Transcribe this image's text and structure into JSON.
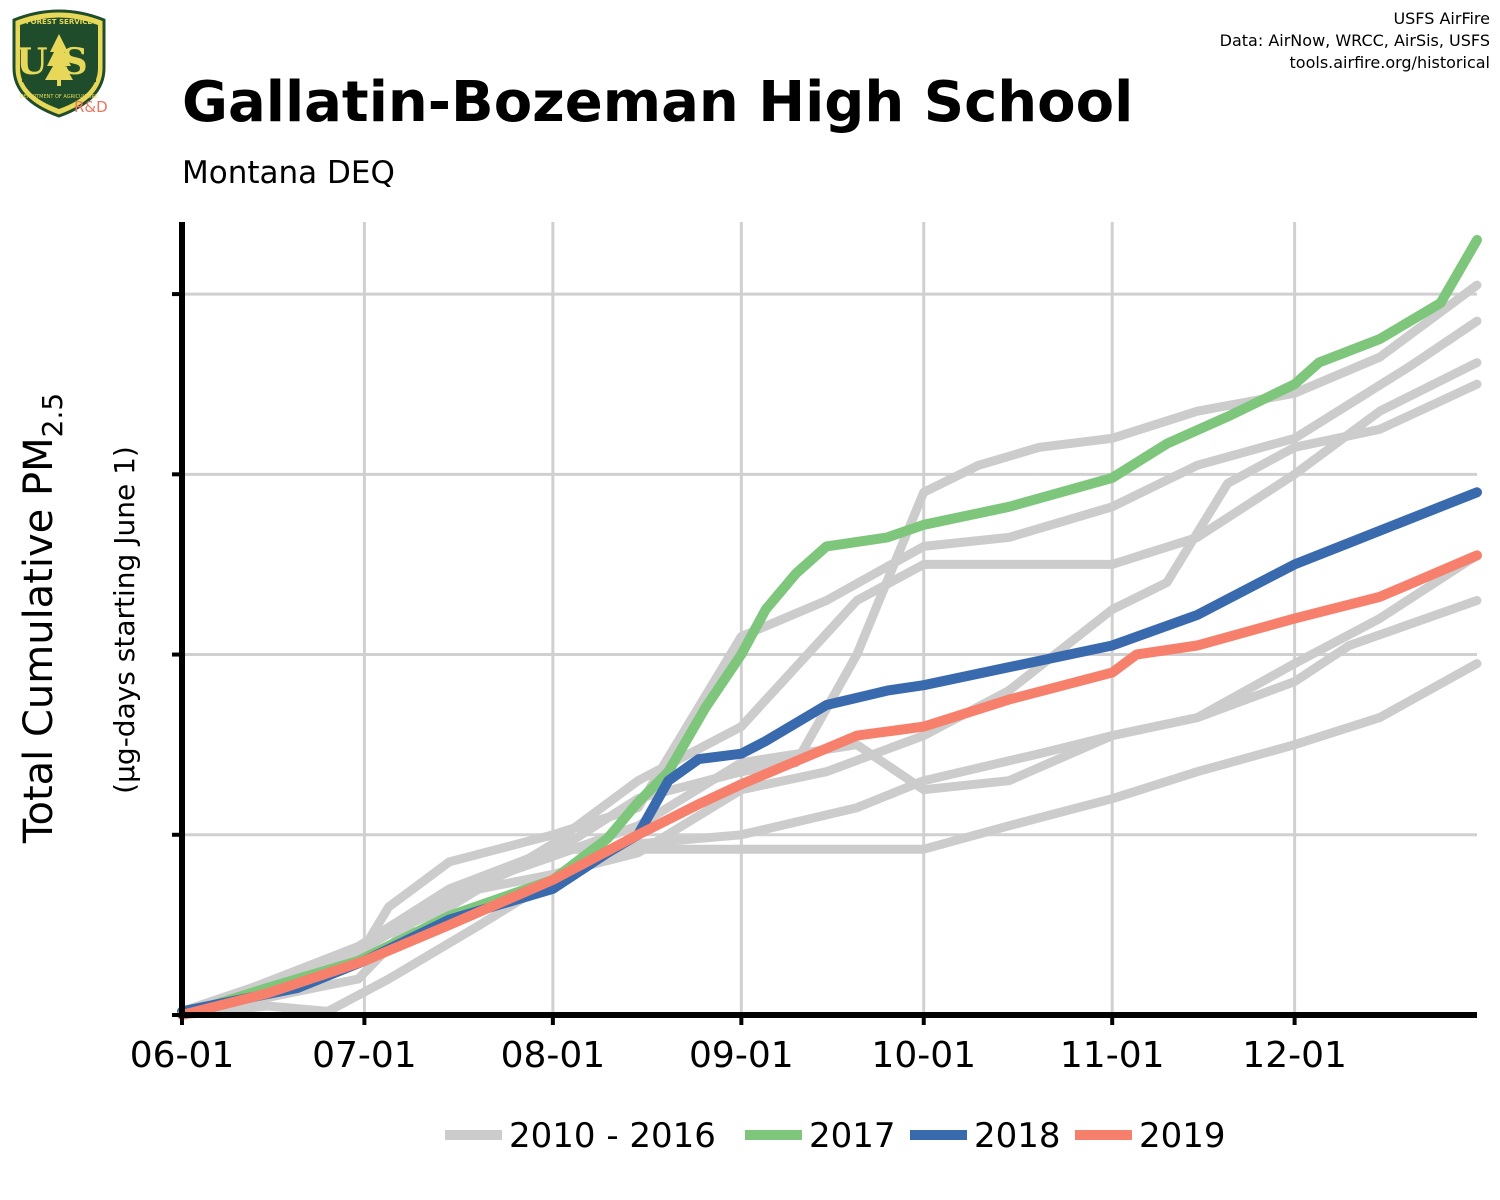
{
  "header": {
    "title": "Gallatin-Bozeman High School",
    "subtitle": "Montana DEQ",
    "credits": [
      "USFS AirFire",
      "Data: AirNow, WRCC, AirSis, USFS",
      "tools.airfire.org/historical"
    ],
    "logo": {
      "icon": "usfs-shield-icon",
      "text_top": "FOREST SERVICE",
      "letters": "US",
      "text_bottom": "DEPARTMENT OF AGRICULTURE",
      "tag": "R&D"
    }
  },
  "colors": {
    "background": "#ffffff",
    "grid": "#d0d0d0",
    "axis": "#000000",
    "logo_green": "#1f4d2b",
    "logo_gold": "#e8d85a"
  },
  "chart_data": {
    "type": "line",
    "title": "Gallatin-Bozeman High School",
    "subtitle": "Montana DEQ",
    "ylabel": "Total Cumulative PM2.5",
    "ylabel_parts": {
      "main": "Total Cumulative PM",
      "subscript": "2.5"
    },
    "ylabel_sub": "(µg-days starting June 1)",
    "xlabel": "",
    "x_type": "date",
    "xlim": [
      "06-01",
      "12-31"
    ],
    "x_ticks": [
      "06-01",
      "07-01",
      "08-01",
      "09-01",
      "10-01",
      "11-01",
      "12-01"
    ],
    "y_tick_count": 4,
    "y_tick_labels_shown": false,
    "grid": true,
    "legend_position": "bottom",
    "legend": [
      {
        "label": "2010 - 2016",
        "color": "#cccccc"
      },
      {
        "label": "2017",
        "color": "#7dc67b"
      },
      {
        "label": "2018",
        "color": "#3a6aae"
      },
      {
        "label": "2019",
        "color": "#f7806d"
      }
    ],
    "series": [
      {
        "group": "2010 - 2016",
        "color": "#cccccc",
        "points": [
          [
            "06-01",
            0.0
          ],
          [
            "06-30",
            0.32
          ],
          [
            "07-05",
            0.6
          ],
          [
            "07-15",
            0.85
          ],
          [
            "08-01",
            1.0
          ],
          [
            "08-15",
            1.15
          ],
          [
            "09-01",
            2.1
          ],
          [
            "09-15",
            2.3
          ],
          [
            "10-01",
            2.6
          ],
          [
            "10-15",
            2.65
          ],
          [
            "11-01",
            2.82
          ],
          [
            "11-15",
            3.05
          ],
          [
            "12-01",
            3.2
          ],
          [
            "12-20",
            3.6
          ],
          [
            "12-31",
            3.85
          ]
        ]
      },
      {
        "group": "2010 - 2016",
        "color": "#cccccc",
        "points": [
          [
            "06-01",
            0.02
          ],
          [
            "06-30",
            0.35
          ],
          [
            "07-15",
            0.65
          ],
          [
            "08-01",
            0.9
          ],
          [
            "08-15",
            1.2
          ],
          [
            "09-01",
            1.35
          ],
          [
            "09-10",
            1.4
          ],
          [
            "09-20",
            2.0
          ],
          [
            "10-01",
            2.9
          ],
          [
            "10-10",
            3.05
          ],
          [
            "10-20",
            3.15
          ],
          [
            "11-01",
            3.2
          ],
          [
            "11-15",
            3.35
          ],
          [
            "12-01",
            3.45
          ],
          [
            "12-15",
            3.65
          ],
          [
            "12-31",
            4.05
          ]
        ]
      },
      {
        "group": "2010 - 2016",
        "color": "#cccccc",
        "points": [
          [
            "06-01",
            0.0
          ],
          [
            "06-20",
            0.18
          ],
          [
            "07-01",
            0.4
          ],
          [
            "07-15",
            0.6
          ],
          [
            "08-01",
            0.95
          ],
          [
            "08-15",
            1.3
          ],
          [
            "09-01",
            1.6
          ],
          [
            "09-20",
            2.3
          ],
          [
            "10-01",
            2.5
          ],
          [
            "11-01",
            2.5
          ],
          [
            "11-15",
            2.65
          ],
          [
            "12-01",
            3.0
          ],
          [
            "12-15",
            3.35
          ],
          [
            "12-31",
            3.62
          ]
        ]
      },
      {
        "group": "2010 - 2016",
        "color": "#cccccc",
        "points": [
          [
            "06-01",
            0.0
          ],
          [
            "06-30",
            0.2
          ],
          [
            "07-10",
            0.55
          ],
          [
            "07-20",
            0.7
          ],
          [
            "08-01",
            0.78
          ],
          [
            "08-15",
            0.9
          ],
          [
            "09-01",
            1.25
          ],
          [
            "09-15",
            1.35
          ],
          [
            "10-01",
            1.55
          ],
          [
            "10-15",
            1.8
          ],
          [
            "11-01",
            2.25
          ],
          [
            "11-10",
            2.4
          ],
          [
            "11-20",
            2.95
          ],
          [
            "12-01",
            3.15
          ],
          [
            "12-15",
            3.25
          ],
          [
            "12-31",
            3.5
          ]
        ]
      },
      {
        "group": "2010 - 2016",
        "color": "#cccccc",
        "points": [
          [
            "06-01",
            0.0
          ],
          [
            "06-15",
            0.05
          ],
          [
            "06-25",
            0.02
          ],
          [
            "07-05",
            0.2
          ],
          [
            "07-20",
            0.5
          ],
          [
            "08-01",
            0.75
          ],
          [
            "08-15",
            0.95
          ],
          [
            "09-01",
            1.0
          ],
          [
            "09-20",
            1.15
          ],
          [
            "10-01",
            1.3
          ],
          [
            "10-20",
            1.45
          ],
          [
            "11-01",
            1.55
          ],
          [
            "11-15",
            1.65
          ],
          [
            "12-01",
            1.85
          ],
          [
            "12-10",
            2.05
          ],
          [
            "12-31",
            2.3
          ]
        ]
      },
      {
        "group": "2010 - 2016",
        "color": "#cccccc",
        "points": [
          [
            "06-01",
            0.0
          ],
          [
            "06-30",
            0.38
          ],
          [
            "07-15",
            0.7
          ],
          [
            "08-01",
            0.92
          ],
          [
            "08-10",
            0.92
          ],
          [
            "09-01",
            0.92
          ],
          [
            "10-01",
            0.92
          ],
          [
            "10-15",
            1.05
          ],
          [
            "11-01",
            1.2
          ],
          [
            "11-15",
            1.35
          ],
          [
            "12-01",
            1.5
          ],
          [
            "12-15",
            1.65
          ],
          [
            "12-31",
            1.95
          ]
        ]
      },
      {
        "group": "2010 - 2016",
        "color": "#cccccc",
        "points": [
          [
            "06-01",
            0.0
          ],
          [
            "06-30",
            0.35
          ],
          [
            "07-15",
            0.68
          ],
          [
            "08-01",
            0.88
          ],
          [
            "08-15",
            1.05
          ],
          [
            "09-01",
            1.4
          ],
          [
            "09-20",
            1.5
          ],
          [
            "10-01",
            1.25
          ],
          [
            "10-15",
            1.3
          ],
          [
            "11-01",
            1.55
          ],
          [
            "11-15",
            1.65
          ],
          [
            "12-01",
            1.95
          ],
          [
            "12-15",
            2.2
          ],
          [
            "12-31",
            2.55
          ]
        ]
      },
      {
        "name": "2017",
        "color": "#7dc67b",
        "points": [
          [
            "06-01",
            0.0
          ],
          [
            "06-15",
            0.15
          ],
          [
            "06-30",
            0.3
          ],
          [
            "07-15",
            0.55
          ],
          [
            "08-01",
            0.75
          ],
          [
            "08-10",
            0.98
          ],
          [
            "08-15",
            1.18
          ],
          [
            "08-20",
            1.35
          ],
          [
            "08-26",
            1.7
          ],
          [
            "09-01",
            2.0
          ],
          [
            "09-05",
            2.25
          ],
          [
            "09-10",
            2.45
          ],
          [
            "09-15",
            2.6
          ],
          [
            "09-25",
            2.65
          ],
          [
            "10-01",
            2.72
          ],
          [
            "10-15",
            2.82
          ],
          [
            "11-01",
            2.98
          ],
          [
            "11-10",
            3.17
          ],
          [
            "11-20",
            3.32
          ],
          [
            "12-01",
            3.5
          ],
          [
            "12-05",
            3.62
          ],
          [
            "12-15",
            3.75
          ],
          [
            "12-25",
            3.95
          ],
          [
            "12-31",
            4.3
          ]
        ]
      },
      {
        "name": "2018",
        "color": "#3a6aae",
        "points": [
          [
            "06-01",
            0.02
          ],
          [
            "06-20",
            0.15
          ],
          [
            "07-01",
            0.3
          ],
          [
            "07-15",
            0.53
          ],
          [
            "08-01",
            0.7
          ],
          [
            "08-10",
            0.9
          ],
          [
            "08-15",
            1.0
          ],
          [
            "08-20",
            1.3
          ],
          [
            "08-25",
            1.42
          ],
          [
            "09-01",
            1.45
          ],
          [
            "09-05",
            1.52
          ],
          [
            "09-15",
            1.72
          ],
          [
            "09-25",
            1.8
          ],
          [
            "10-01",
            1.83
          ],
          [
            "10-15",
            1.93
          ],
          [
            "11-01",
            2.05
          ],
          [
            "11-15",
            2.22
          ],
          [
            "12-01",
            2.5
          ],
          [
            "12-10",
            2.62
          ],
          [
            "12-31",
            2.9
          ]
        ]
      },
      {
        "name": "2019",
        "color": "#f7806d",
        "points": [
          [
            "06-01",
            0.0
          ],
          [
            "06-15",
            0.12
          ],
          [
            "07-01",
            0.3
          ],
          [
            "07-15",
            0.5
          ],
          [
            "08-01",
            0.75
          ],
          [
            "08-15",
            1.0
          ],
          [
            "08-25",
            1.17
          ],
          [
            "09-01",
            1.28
          ],
          [
            "09-08",
            1.38
          ],
          [
            "09-20",
            1.55
          ],
          [
            "10-01",
            1.6
          ],
          [
            "10-15",
            1.75
          ],
          [
            "11-01",
            1.9
          ],
          [
            "11-05",
            2.0
          ],
          [
            "11-15",
            2.05
          ],
          [
            "12-01",
            2.2
          ],
          [
            "12-15",
            2.32
          ],
          [
            "12-31",
            2.55
          ]
        ]
      }
    ]
  }
}
